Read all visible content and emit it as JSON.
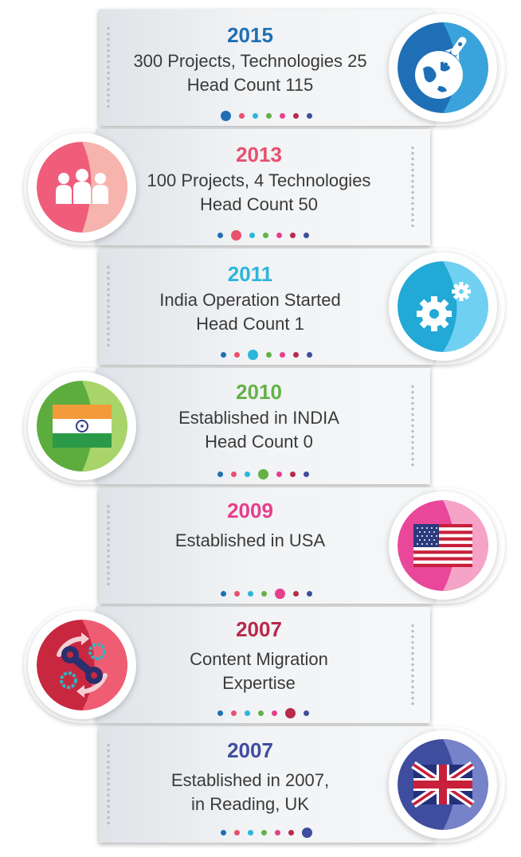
{
  "dots_colors": [
    "#1f6fb6",
    "#e8506e",
    "#2bb6dc",
    "#62b246",
    "#e63f8c",
    "#b8294a",
    "#3f4d9e"
  ],
  "items": [
    {
      "year": "2015",
      "line1": "300 Projects, Technologies 25",
      "line2": "Head Count 115",
      "color": "#1f6fb6",
      "icon": "rocket-globe-icon"
    },
    {
      "year": "2013",
      "line1": "100 Projects, 4 Technologies",
      "line2": "Head Count 50",
      "color": "#e8506e",
      "icon": "people-icon"
    },
    {
      "year": "2011",
      "line1": "India Operation Started",
      "line2": "Head Count 1",
      "color": "#2bb6dc",
      "icon": "gears-icon"
    },
    {
      "year": "2010",
      "line1": "Established in INDIA",
      "line2": "Head Count 0",
      "color": "#62b246",
      "icon": "india-flag-icon"
    },
    {
      "year": "2009",
      "line1": "Established in USA",
      "line2": "",
      "color": "#e63f8c",
      "icon": "usa-flag-icon"
    },
    {
      "year": "2007",
      "line1": "Content Migration",
      "line2": "Expertise",
      "color": "#b8294a",
      "icon": "migration-icon"
    },
    {
      "year": "2007",
      "line1": "Established in 2007,",
      "line2": "in Reading, UK",
      "color": "#3f4d9e",
      "icon": "uk-flag-icon"
    }
  ]
}
